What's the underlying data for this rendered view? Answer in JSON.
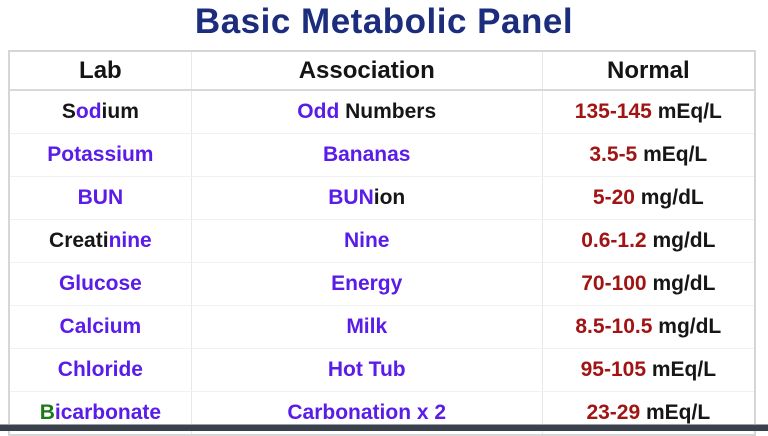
{
  "title": "Basic Metabolic Panel",
  "colors": {
    "title": "#1b2d7c",
    "header": "#141414",
    "black": "#161616",
    "purple": "#5a1ce8",
    "red": "#a11414",
    "green": "#1a7a1a"
  },
  "table": {
    "headers": [
      {
        "label": "Lab"
      },
      {
        "label": "Association"
      },
      {
        "label": "Normal"
      }
    ],
    "rows": [
      {
        "lab": [
          {
            "text": "S",
            "color": "black"
          },
          {
            "text": "od",
            "color": "purple"
          },
          {
            "text": "ium",
            "color": "black"
          }
        ],
        "association": [
          {
            "text": "Odd",
            "color": "purple"
          },
          {
            "text": " Numbers",
            "color": "black"
          }
        ],
        "normal": [
          {
            "text": "135-145",
            "color": "red"
          },
          {
            "text": " mEq/L",
            "color": "black"
          }
        ]
      },
      {
        "lab": [
          {
            "text": "Potassium",
            "color": "purple"
          }
        ],
        "association": [
          {
            "text": "Bananas",
            "color": "purple"
          }
        ],
        "normal": [
          {
            "text": "3.5-5",
            "color": "red"
          },
          {
            "text": " mEq/L",
            "color": "black"
          }
        ]
      },
      {
        "lab": [
          {
            "text": "BUN",
            "color": "purple"
          }
        ],
        "association": [
          {
            "text": "BUN",
            "color": "purple"
          },
          {
            "text": "ion",
            "color": "black"
          }
        ],
        "normal": [
          {
            "text": "5-20",
            "color": "red"
          },
          {
            "text": " mg/dL",
            "color": "black"
          }
        ]
      },
      {
        "lab": [
          {
            "text": "Creati",
            "color": "black"
          },
          {
            "text": "nine",
            "color": "purple"
          }
        ],
        "association": [
          {
            "text": "Nine",
            "color": "purple"
          }
        ],
        "normal": [
          {
            "text": "0.6-1.2",
            "color": "red"
          },
          {
            "text": " mg/dL",
            "color": "black"
          }
        ]
      },
      {
        "lab": [
          {
            "text": "Glucose",
            "color": "purple"
          }
        ],
        "association": [
          {
            "text": "Energy",
            "color": "purple"
          }
        ],
        "normal": [
          {
            "text": "70-100",
            "color": "red"
          },
          {
            "text": " mg/dL",
            "color": "black"
          }
        ]
      },
      {
        "lab": [
          {
            "text": "Calcium",
            "color": "purple"
          }
        ],
        "association": [
          {
            "text": "Milk",
            "color": "purple"
          }
        ],
        "normal": [
          {
            "text": "8.5-10.5",
            "color": "red"
          },
          {
            "text": " mg/dL",
            "color": "black"
          }
        ]
      },
      {
        "lab": [
          {
            "text": "Chloride",
            "color": "purple"
          }
        ],
        "association": [
          {
            "text": "Hot Tub",
            "color": "purple"
          }
        ],
        "normal": [
          {
            "text": "95-105",
            "color": "red"
          },
          {
            "text": " mEq/L",
            "color": "black"
          }
        ]
      },
      {
        "lab": [
          {
            "text": "B",
            "color": "green"
          },
          {
            "text": "icarbonate",
            "color": "purple"
          }
        ],
        "association": [
          {
            "text": "Carbonation x 2",
            "color": "purple"
          }
        ],
        "normal": [
          {
            "text": "23-29",
            "color": "red"
          },
          {
            "text": " mEq/L",
            "color": "black"
          }
        ]
      }
    ]
  }
}
